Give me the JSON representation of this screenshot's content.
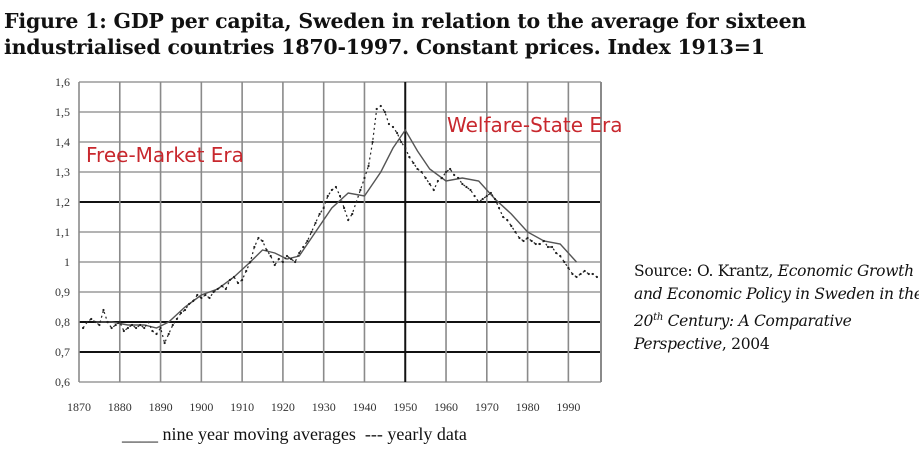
{
  "figure": {
    "title_line1": "Figure 1: GDP per capita, Sweden in relation to the average for sixteen",
    "title_line2": "industrialised countries 1870-1997. Constant prices. Index 1913=1"
  },
  "annotations": {
    "free_market": "Free-Market Era",
    "welfare_state": "Welfare-State Era",
    "color": "#c8282e"
  },
  "source": {
    "prefix": "Source: O. Krantz, ",
    "italic1": "Economic Growth and Economic Policy in Sweden in the 20",
    "superscript": "th",
    "italic2": " Century: A Comparative Perspective",
    "suffix": ", 2004"
  },
  "legend": {
    "moving_average": "____ nine year moving averages",
    "yearly": "--- yearly data"
  },
  "chart_data": {
    "type": "line",
    "title": "GDP per capita, Sweden in relation to the average for sixteen industrialised countries 1870-1997. Constant prices. Index 1913=1",
    "xlabel": "",
    "ylabel": "",
    "xlim": [
      1870,
      1997
    ],
    "ylim": [
      0.6,
      1.6
    ],
    "x_ticks": [
      1870,
      1880,
      1890,
      1900,
      1910,
      1920,
      1930,
      1940,
      1950,
      1960,
      1970,
      1980,
      1990
    ],
    "x_tick_labels": [
      "1870",
      "1880",
      "1890",
      "1900",
      "1910",
      "1920",
      "1930",
      "1940",
      "1950",
      "1960",
      "1970",
      "1980",
      "1990"
    ],
    "y_ticks": [
      0.6,
      0.7,
      0.8,
      0.9,
      1.0,
      1.1,
      1.2,
      1.3,
      1.4,
      1.5,
      1.6
    ],
    "y_tick_labels": [
      "0,6",
      "0,7",
      "0,8",
      "0,9",
      "1",
      "1,1",
      "1,2",
      "1,3",
      "1,4",
      "1,5",
      "1,6"
    ],
    "grid": true,
    "heavy_gridlines": {
      "x": [
        1950
      ],
      "y": [
        0.7,
        0.8,
        1.2
      ]
    },
    "legend_position": "bottom",
    "series": [
      {
        "name": "nine year moving averages",
        "style": "solid",
        "x": [
          1874,
          1878,
          1882,
          1886,
          1889,
          1892,
          1896,
          1900,
          1904,
          1908,
          1912,
          1915,
          1918,
          1921,
          1924,
          1928,
          1932,
          1936,
          1940,
          1944,
          1947,
          1950,
          1953,
          1956,
          1960,
          1964,
          1968,
          1972,
          1976,
          1980,
          1984,
          1988,
          1992
        ],
        "values": [
          0.8,
          0.8,
          0.79,
          0.79,
          0.78,
          0.8,
          0.85,
          0.89,
          0.91,
          0.95,
          1.0,
          1.04,
          1.03,
          1.01,
          1.02,
          1.1,
          1.18,
          1.23,
          1.22,
          1.3,
          1.38,
          1.44,
          1.37,
          1.31,
          1.27,
          1.28,
          1.27,
          1.21,
          1.16,
          1.1,
          1.07,
          1.06,
          1.0
        ]
      },
      {
        "name": "yearly data",
        "style": "dashed",
        "x": [
          1871,
          1872,
          1873,
          1874,
          1875,
          1876,
          1877,
          1878,
          1879,
          1880,
          1881,
          1882,
          1883,
          1884,
          1885,
          1886,
          1887,
          1888,
          1889,
          1890,
          1891,
          1892,
          1893,
          1894,
          1895,
          1896,
          1897,
          1898,
          1899,
          1900,
          1901,
          1902,
          1903,
          1904,
          1905,
          1906,
          1907,
          1908,
          1909,
          1910,
          1911,
          1912,
          1913,
          1914,
          1915,
          1916,
          1917,
          1918,
          1919,
          1920,
          1921,
          1922,
          1923,
          1924,
          1925,
          1926,
          1927,
          1928,
          1929,
          1930,
          1931,
          1932,
          1933,
          1934,
          1935,
          1936,
          1937,
          1938,
          1939,
          1940,
          1941,
          1942,
          1943,
          1944,
          1945,
          1946,
          1947,
          1948,
          1949,
          1950,
          1951,
          1952,
          1953,
          1954,
          1955,
          1956,
          1957,
          1958,
          1959,
          1960,
          1961,
          1962,
          1963,
          1964,
          1965,
          1966,
          1967,
          1968,
          1969,
          1970,
          1971,
          1972,
          1973,
          1974,
          1975,
          1976,
          1977,
          1978,
          1979,
          1980,
          1981,
          1982,
          1983,
          1984,
          1985,
          1986,
          1987,
          1988,
          1989,
          1990,
          1991,
          1992,
          1993,
          1994,
          1995,
          1996,
          1997
        ],
        "values": [
          0.78,
          0.8,
          0.81,
          0.8,
          0.79,
          0.84,
          0.8,
          0.78,
          0.79,
          0.8,
          0.77,
          0.78,
          0.79,
          0.78,
          0.79,
          0.78,
          0.8,
          0.77,
          0.76,
          0.78,
          0.73,
          0.76,
          0.79,
          0.81,
          0.83,
          0.84,
          0.86,
          0.87,
          0.89,
          0.88,
          0.89,
          0.88,
          0.9,
          0.91,
          0.92,
          0.91,
          0.94,
          0.95,
          0.93,
          0.94,
          0.97,
          1.0,
          1.05,
          1.08,
          1.07,
          1.04,
          1.02,
          0.99,
          1.01,
          1.0,
          1.02,
          1.01,
          1.0,
          1.03,
          1.05,
          1.07,
          1.1,
          1.13,
          1.16,
          1.18,
          1.22,
          1.24,
          1.25,
          1.22,
          1.18,
          1.14,
          1.16,
          1.2,
          1.24,
          1.28,
          1.32,
          1.4,
          1.51,
          1.52,
          1.5,
          1.46,
          1.45,
          1.43,
          1.4,
          1.38,
          1.35,
          1.33,
          1.31,
          1.3,
          1.28,
          1.26,
          1.24,
          1.27,
          1.28,
          1.3,
          1.31,
          1.29,
          1.28,
          1.26,
          1.25,
          1.24,
          1.22,
          1.2,
          1.21,
          1.22,
          1.23,
          1.21,
          1.18,
          1.15,
          1.14,
          1.12,
          1.1,
          1.08,
          1.07,
          1.08,
          1.07,
          1.06,
          1.06,
          1.07,
          1.05,
          1.05,
          1.03,
          1.02,
          1.0,
          0.98,
          0.96,
          0.95,
          0.96,
          0.97,
          0.96,
          0.96,
          0.95
        ]
      }
    ]
  }
}
